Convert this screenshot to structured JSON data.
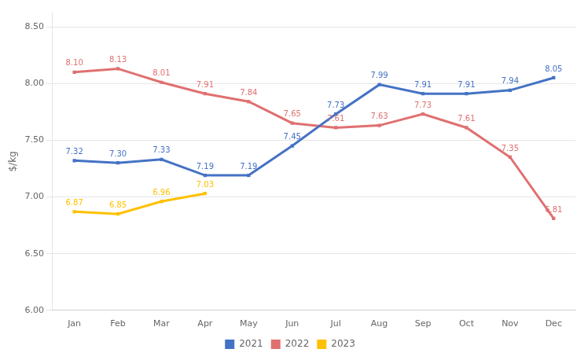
{
  "chart_data": {
    "type": "line",
    "ylabel": "$/kg",
    "categories": [
      "Jan",
      "Feb",
      "Mar",
      "Apr",
      "May",
      "Jun",
      "Jul",
      "Aug",
      "Sep",
      "Oct",
      "Nov",
      "Dec"
    ],
    "series": [
      {
        "name": "2021",
        "color": "#4472C4",
        "marker": "square",
        "values": [
          7.32,
          7.3,
          7.33,
          7.19,
          7.19,
          7.45,
          7.73,
          7.99,
          7.91,
          7.91,
          7.94,
          8.05
        ],
        "value_labels": [
          "7.32",
          "7.30",
          "7.33",
          "7.19",
          "7.19",
          "7.45",
          "7.73",
          "7.99",
          "7.91",
          "7.91",
          "7.94",
          "8.05"
        ]
      },
      {
        "name": "2022",
        "color": "#E07070",
        "marker": "square",
        "values": [
          8.1,
          8.13,
          8.01,
          7.91,
          7.84,
          7.65,
          7.61,
          7.63,
          7.73,
          7.61,
          7.35,
          6.81
        ],
        "value_labels": [
          "8.10",
          "8.13",
          "8.01",
          "7.91",
          "7.84",
          "7.65",
          "7.61",
          "7.63",
          "7.73",
          "7.61",
          "7.35",
          "6.81"
        ]
      },
      {
        "name": "2023",
        "color": "#FFC000",
        "marker": "square",
        "values": [
          6.87,
          6.85,
          6.96,
          7.03,
          null,
          null,
          null,
          null,
          null,
          null,
          null,
          null
        ],
        "value_labels": [
          "6.87",
          "6.85",
          "6.96",
          "7.03",
          null,
          null,
          null,
          null,
          null,
          null,
          null,
          null
        ]
      }
    ],
    "ylim": [
      6.0,
      8.625
    ],
    "yticks": [
      {
        "value": 6.0,
        "label": "6.00"
      },
      {
        "value": 6.5,
        "label": "6.50"
      },
      {
        "value": 7.0,
        "label": "7.00"
      },
      {
        "value": 7.5,
        "label": "7.50"
      },
      {
        "value": 8.0,
        "label": "8.00"
      },
      {
        "value": 8.5,
        "label": "8.50"
      }
    ],
    "grid": true,
    "legend": "bottom",
    "data_labels": true
  }
}
